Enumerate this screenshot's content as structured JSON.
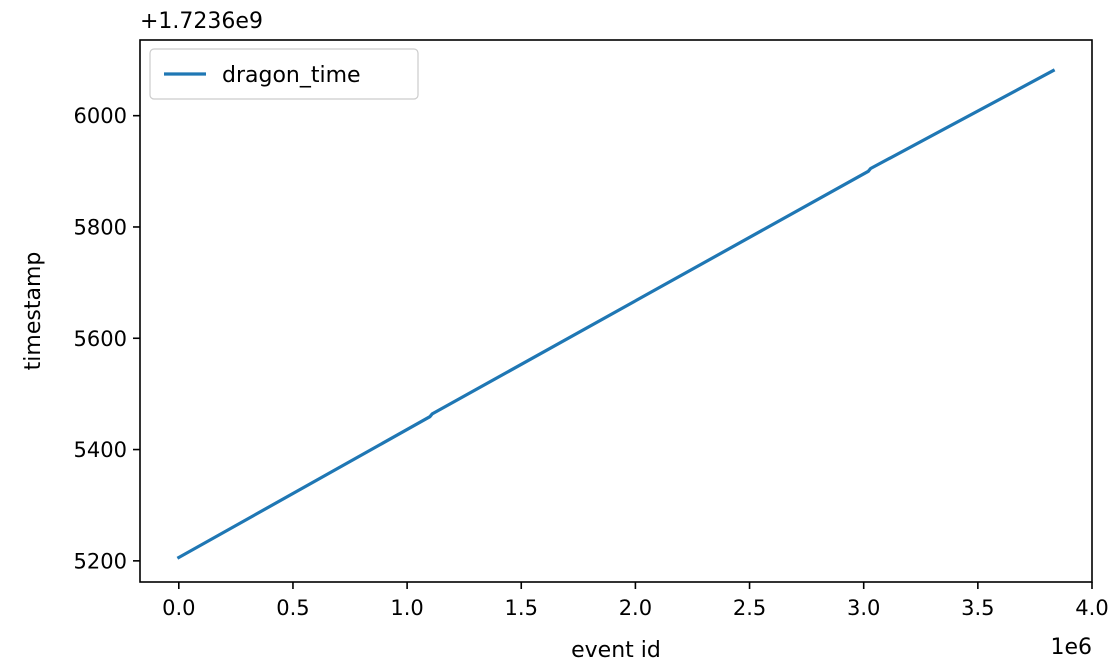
{
  "chart_data": {
    "type": "line",
    "title": "",
    "xlabel": "event id",
    "ylabel": "timestamp",
    "x_offset_label": "1e6",
    "y_offset_label": "+1.7236e9",
    "xlim": [
      -170000,
      4000000
    ],
    "ylim": [
      5162,
      6136
    ],
    "x_ticks": [
      0,
      500000,
      1000000,
      1500000,
      2000000,
      2500000,
      3000000,
      3500000,
      4000000
    ],
    "x_tick_labels": [
      "0.0",
      "0.5",
      "1.0",
      "1.5",
      "2.0",
      "2.5",
      "3.0",
      "3.5",
      "4.0"
    ],
    "y_ticks": [
      5200,
      5400,
      5600,
      5800,
      6000
    ],
    "y_tick_labels": [
      "5200",
      "5400",
      "5600",
      "5800",
      "6000"
    ],
    "legend_position": "upper-left",
    "grid": false,
    "series": [
      {
        "name": "dragon_time",
        "color": "#1f77b4",
        "points": [
          [
            0,
            5206
          ],
          [
            1100000,
            5459
          ],
          [
            1110000,
            5464
          ],
          [
            3020000,
            5900
          ],
          [
            3030000,
            5905
          ],
          [
            3830000,
            6081
          ]
        ]
      }
    ]
  }
}
